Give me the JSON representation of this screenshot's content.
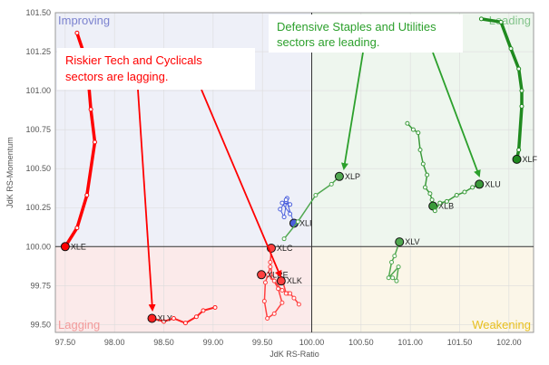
{
  "chart_data": {
    "type": "scatter",
    "title": "",
    "xlabel": "JdK RS-Ratio",
    "ylabel": "JdK RS-Momentum",
    "xlim": [
      97.4,
      102.25
    ],
    "ylim": [
      99.45,
      101.5
    ],
    "x_ticks": [
      "97.50",
      "98.00",
      "98.50",
      "99.00",
      "99.50",
      "100.00",
      "100.50",
      "101.00",
      "101.50",
      "102.00"
    ],
    "y_ticks": [
      "99.50",
      "99.75",
      "100.00",
      "100.25",
      "100.50",
      "100.75",
      "101.00",
      "101.25",
      "101.50"
    ],
    "grid": true,
    "center": [
      100,
      100
    ],
    "quadrants": [
      {
        "name": "Improving",
        "color": "#7b82cf",
        "fill": "#eef0f8"
      },
      {
        "name": "Leading",
        "color": "#82c38a",
        "fill": "#eef6ee"
      },
      {
        "name": "Lagging",
        "color": "#f29a9a",
        "fill": "#fbeaea"
      },
      {
        "name": "Weakening",
        "color": "#e8c020",
        "fill": "#fbf6e8"
      }
    ],
    "series": [
      {
        "name": "XLE",
        "color": "#ff0000",
        "width": 3.5,
        "points": [
          [
            97.62,
            101.37
          ],
          [
            97.72,
            101.18
          ],
          [
            97.76,
            100.88
          ],
          [
            97.8,
            100.67
          ],
          [
            97.72,
            100.33
          ],
          [
            97.62,
            100.12
          ],
          [
            97.5,
            100.0
          ]
        ]
      },
      {
        "name": "XLY",
        "color": "#ff2020",
        "width": 2,
        "points": [
          [
            99.02,
            99.61
          ],
          [
            98.9,
            99.59
          ],
          [
            98.83,
            99.55
          ],
          [
            98.72,
            99.51
          ],
          [
            98.6,
            99.54
          ],
          [
            98.5,
            99.52
          ],
          [
            98.38,
            99.54
          ]
        ]
      },
      {
        "name": "XLC",
        "color": "#ff4040",
        "width": 1.5,
        "points": [
          [
            99.58,
            99.87
          ],
          [
            99.53,
            99.77
          ],
          [
            99.52,
            99.65
          ],
          [
            99.55,
            99.54
          ],
          [
            99.62,
            99.57
          ],
          [
            99.7,
            99.64
          ],
          [
            99.66,
            99.73
          ],
          [
            99.6,
            99.8
          ],
          [
            99.58,
            99.9
          ],
          [
            99.59,
            99.99
          ]
        ]
      },
      {
        "name": "XLRE",
        "color": "#ff4040",
        "width": 1.5,
        "points": [
          [
            99.76,
            99.7
          ],
          [
            99.7,
            99.72
          ],
          [
            99.62,
            99.78
          ],
          [
            99.56,
            99.82
          ],
          [
            99.49,
            99.82
          ]
        ]
      },
      {
        "name": "XLK",
        "color": "#ff4040",
        "width": 1.5,
        "points": [
          [
            99.87,
            99.63
          ],
          [
            99.82,
            99.67
          ],
          [
            99.78,
            99.7
          ],
          [
            99.74,
            99.7
          ],
          [
            99.71,
            99.77
          ],
          [
            99.69,
            99.78
          ]
        ]
      },
      {
        "name": "XLI",
        "color": "#4a5fdc",
        "width": 1,
        "points": [
          [
            99.74,
            100.29
          ],
          [
            99.68,
            100.24
          ],
          [
            99.72,
            100.19
          ],
          [
            99.75,
            100.31
          ],
          [
            99.78,
            100.21
          ],
          [
            99.7,
            100.28
          ],
          [
            99.78,
            100.27
          ],
          [
            99.74,
            100.3
          ],
          [
            99.82,
            100.15
          ]
        ]
      },
      {
        "name": "XLP",
        "color": "#50a850",
        "width": 1.5,
        "points": [
          [
            99.72,
            100.05
          ],
          [
            99.86,
            100.16
          ],
          [
            100.04,
            100.33
          ],
          [
            100.2,
            100.4
          ],
          [
            100.28,
            100.45
          ]
        ]
      },
      {
        "name": "XLV",
        "color": "#50a850",
        "width": 1.5,
        "points": [
          [
            100.82,
            99.8
          ],
          [
            100.86,
            99.78
          ],
          [
            100.88,
            99.87
          ],
          [
            100.78,
            99.8
          ],
          [
            100.81,
            99.9
          ],
          [
            100.84,
            99.94
          ],
          [
            100.89,
            100.03
          ]
        ]
      },
      {
        "name": "XLB",
        "color": "#3a9a3a",
        "width": 1.5,
        "points": [
          [
            100.97,
            100.79
          ],
          [
            101.03,
            100.75
          ],
          [
            101.08,
            100.73
          ],
          [
            101.1,
            100.62
          ],
          [
            101.13,
            100.53
          ],
          [
            101.17,
            100.46
          ],
          [
            101.15,
            100.38
          ],
          [
            101.2,
            100.34
          ],
          [
            101.22,
            100.3
          ],
          [
            101.23,
            100.26
          ]
        ]
      },
      {
        "name": "XLU",
        "color": "#3a9a3a",
        "width": 1.5,
        "points": [
          [
            101.25,
            100.23
          ],
          [
            101.3,
            100.28
          ],
          [
            101.37,
            100.29
          ],
          [
            101.47,
            100.33
          ],
          [
            101.55,
            100.35
          ],
          [
            101.63,
            100.38
          ],
          [
            101.7,
            100.4
          ]
        ]
      },
      {
        "name": "XLF",
        "color": "#1f8a1f",
        "width": 3.5,
        "points": [
          [
            101.72,
            101.46
          ],
          [
            101.92,
            101.44
          ],
          [
            102.02,
            101.27
          ],
          [
            102.1,
            101.14
          ],
          [
            102.13,
            101.0
          ],
          [
            102.13,
            100.9
          ],
          [
            102.1,
            100.62
          ],
          [
            102.08,
            100.56
          ]
        ]
      }
    ],
    "annotations": [
      {
        "text_lines": [
          "Riskier Tech and Cyclicals",
          "sectors are lagging."
        ],
        "color": "#ff0000"
      },
      {
        "text_lines": [
          "Defensive Staples and Utilities",
          "sectors are leading."
        ],
        "color": "#2ca02c"
      }
    ]
  }
}
